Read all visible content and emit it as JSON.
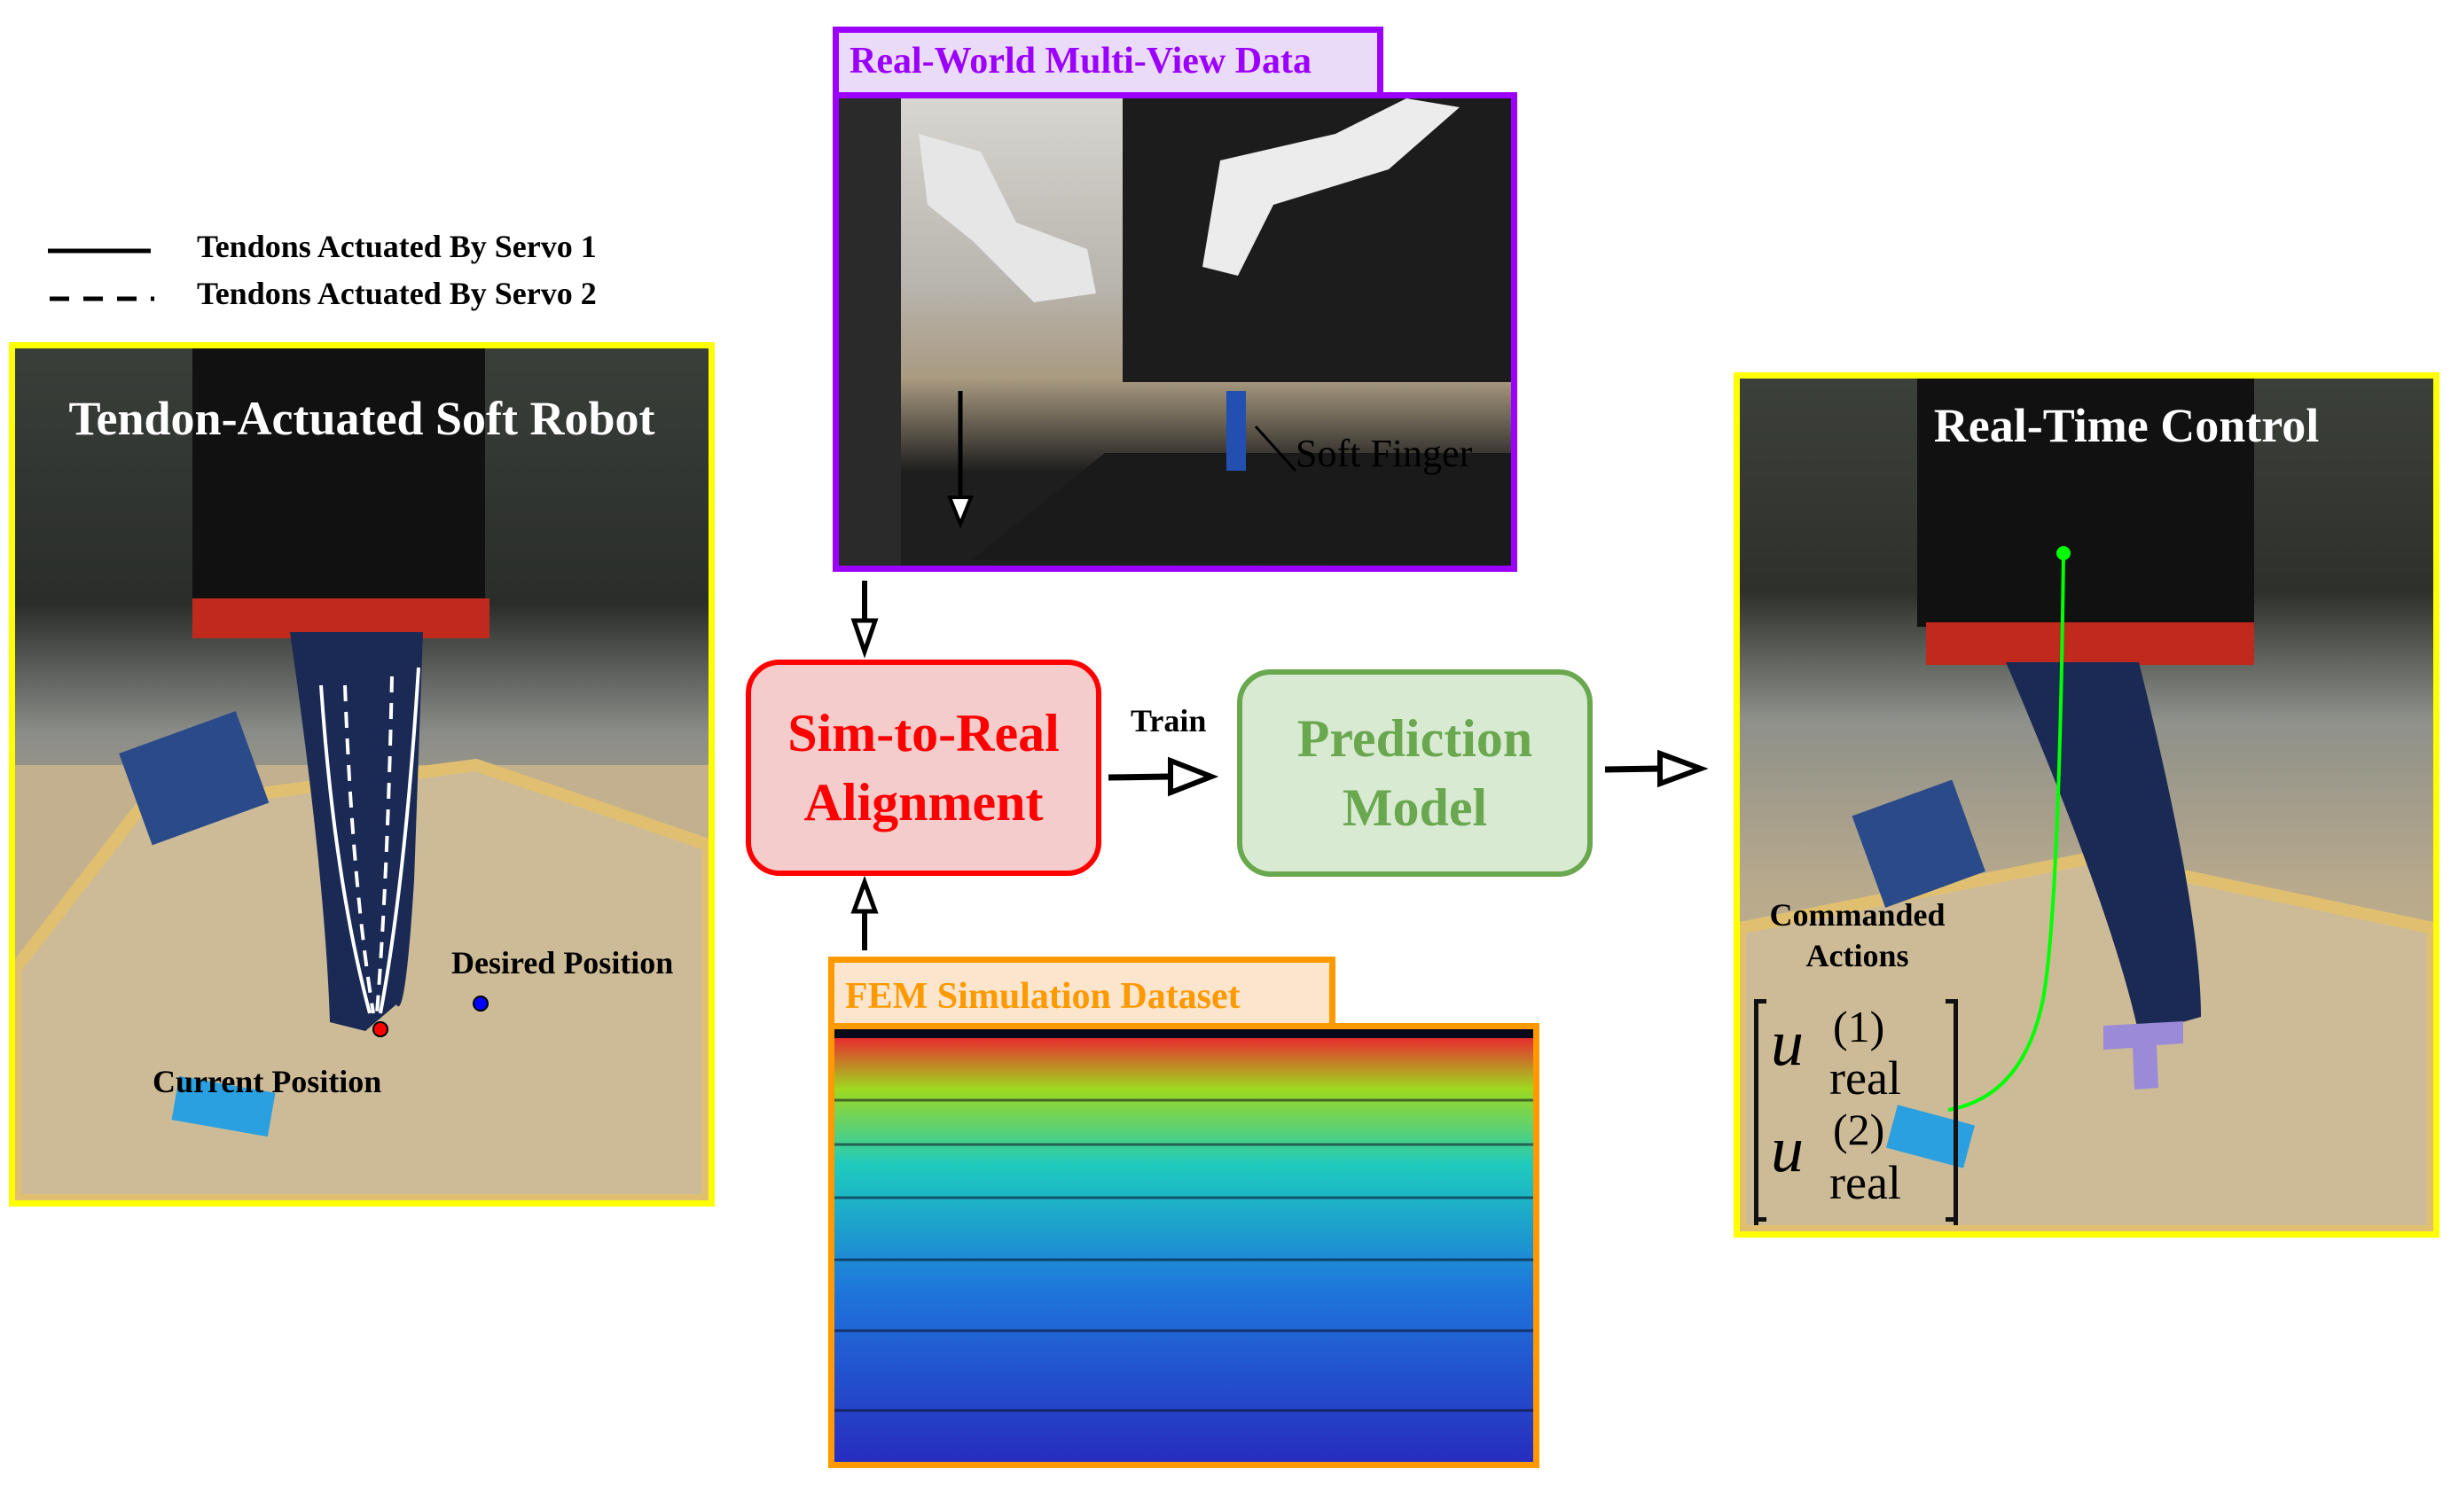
{
  "legend": {
    "solid_label": "Tendons Actuated By Servo 1",
    "dashed_label": "Tendons Actuated By Servo 2"
  },
  "left_panel": {
    "title": "Tendon-Actuated Soft Robot",
    "desired_label": "Desired Position",
    "current_label": "Current Position",
    "border_color": "#ffff00",
    "current_dot_color": "#ff0000",
    "desired_dot_color": "#0000ff"
  },
  "real_data": {
    "title": "Real-World Multi-View Data",
    "finger_label": "Soft Finger",
    "color": "#9b00ff"
  },
  "fem_data": {
    "title": "FEM Simulation Dataset",
    "color": "#ff9900"
  },
  "alignment": {
    "line1": "Sim-to-Real",
    "line2": "Alignment",
    "color": "#ff0000",
    "fill": "#f4cccc"
  },
  "train_label": "Train",
  "prediction": {
    "line1": "Prediction",
    "line2": "Model",
    "color": "#6aa84f",
    "fill": "#d9ead3"
  },
  "right_panel": {
    "title": "Real-Time Control",
    "commanded_line1": "Commanded",
    "commanded_line2": "Actions",
    "u_symbol": "u",
    "sup1": "(1)",
    "sup2": "(2)",
    "sub": "real",
    "trajectory_color": "#00ff00"
  }
}
